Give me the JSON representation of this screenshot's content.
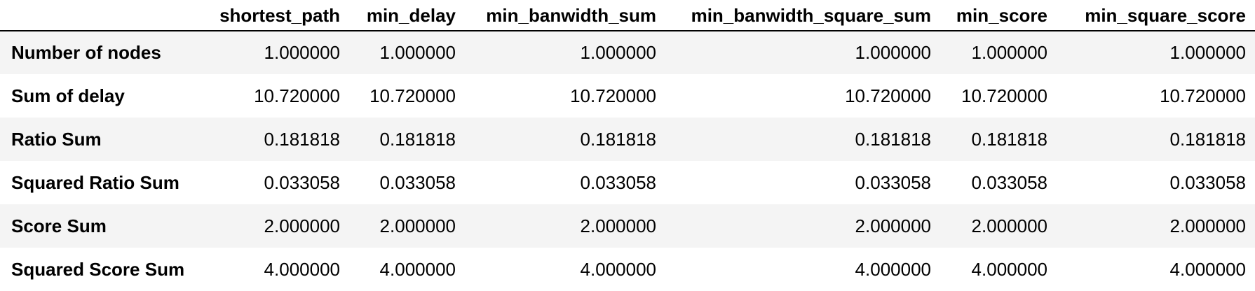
{
  "table": {
    "columns": [
      "shortest_path",
      "min_delay",
      "min_banwidth_sum",
      "min_banwidth_square_sum",
      "min_score",
      "min_square_score"
    ],
    "rows": [
      {
        "label": "Number of nodes",
        "values": [
          "1.000000",
          "1.000000",
          "1.000000",
          "1.000000",
          "1.000000",
          "1.000000"
        ]
      },
      {
        "label": "Sum of delay",
        "values": [
          "10.720000",
          "10.720000",
          "10.720000",
          "10.720000",
          "10.720000",
          "10.720000"
        ]
      },
      {
        "label": "Ratio Sum",
        "values": [
          "0.181818",
          "0.181818",
          "0.181818",
          "0.181818",
          "0.181818",
          "0.181818"
        ]
      },
      {
        "label": "Squared Ratio Sum",
        "values": [
          "0.033058",
          "0.033058",
          "0.033058",
          "0.033058",
          "0.033058",
          "0.033058"
        ]
      },
      {
        "label": "Score Sum",
        "values": [
          "2.000000",
          "2.000000",
          "2.000000",
          "2.000000",
          "2.000000",
          "2.000000"
        ]
      },
      {
        "label": "Squared Score Sum",
        "values": [
          "4.000000",
          "4.000000",
          "4.000000",
          "4.000000",
          "4.000000",
          "4.000000"
        ]
      }
    ]
  },
  "colors": {
    "stripe": "#f4f4f4",
    "background": "#ffffff",
    "header_rule": "#000000",
    "text": "#000000"
  }
}
